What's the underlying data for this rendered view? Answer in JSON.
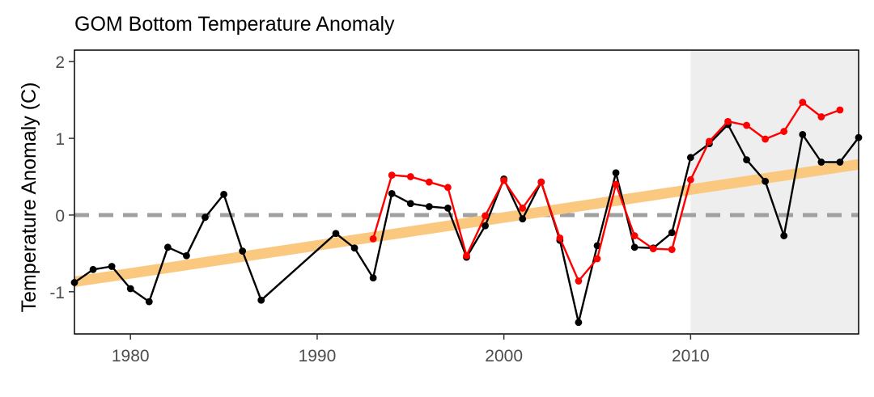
{
  "chart_data": {
    "type": "line",
    "title": "GOM Bottom Temperature Anomaly",
    "xlabel": "",
    "ylabel": "Temperature Anomaly (C)",
    "xlim": [
      1977,
      2019
    ],
    "ylim": [
      -1.55,
      2.15
    ],
    "x_ticks": [
      1980,
      1990,
      2000,
      2010
    ],
    "y_ticks": [
      -1,
      0,
      1,
      2
    ],
    "grid": false,
    "legend": "none",
    "reference_line": {
      "y": 0,
      "color": "#a0a0a0",
      "style": "dashed"
    },
    "shaded_region": {
      "x_start": 2010,
      "x_end": 2019,
      "color": "#eeeeee"
    },
    "trend_line": {
      "x": [
        1977,
        2019
      ],
      "y": [
        -0.87,
        0.66
      ],
      "color": "#fbc880"
    },
    "series": [
      {
        "color": "#000000",
        "x": [
          1977,
          1978,
          1979,
          1980,
          1981,
          1982,
          1983,
          1984,
          1985,
          1986,
          1987,
          1991,
          1992,
          1993,
          1994,
          1995,
          1996,
          1997,
          1998,
          1999,
          2000,
          2001,
          2002,
          2003,
          2004,
          2005,
          2006,
          2007,
          2008,
          2009,
          2010,
          2011,
          2012,
          2013,
          2014,
          2015,
          2016,
          2017,
          2018,
          2019
        ],
        "y": [
          -0.88,
          -0.71,
          -0.67,
          -0.96,
          -1.13,
          -0.42,
          -0.53,
          -0.03,
          0.27,
          -0.47,
          -1.11,
          -0.24,
          -0.43,
          -0.82,
          0.28,
          0.15,
          0.11,
          0.09,
          -0.55,
          -0.14,
          0.47,
          -0.05,
          0.43,
          -0.33,
          -1.4,
          -0.4,
          0.55,
          -0.42,
          -0.43,
          -0.23,
          0.75,
          0.93,
          1.18,
          0.72,
          0.44,
          -0.27,
          1.05,
          0.69,
          0.69,
          1.01
        ]
      },
      {
        "color": "#ff0000",
        "x": [
          1993,
          1994,
          1995,
          1996,
          1997,
          1998,
          1999,
          2000,
          2001,
          2002,
          2003,
          2004,
          2005,
          2006,
          2007,
          2008,
          2009,
          2010,
          2011,
          2012,
          2013,
          2014,
          2015,
          2016,
          2017,
          2018
        ],
        "y": [
          -0.31,
          0.52,
          0.5,
          0.43,
          0.36,
          -0.53,
          -0.01,
          0.45,
          0.09,
          0.43,
          -0.3,
          -0.86,
          -0.57,
          0.4,
          -0.27,
          -0.44,
          -0.45,
          0.46,
          0.96,
          1.22,
          1.17,
          0.99,
          1.09,
          1.47,
          1.28,
          1.37
        ]
      }
    ]
  }
}
